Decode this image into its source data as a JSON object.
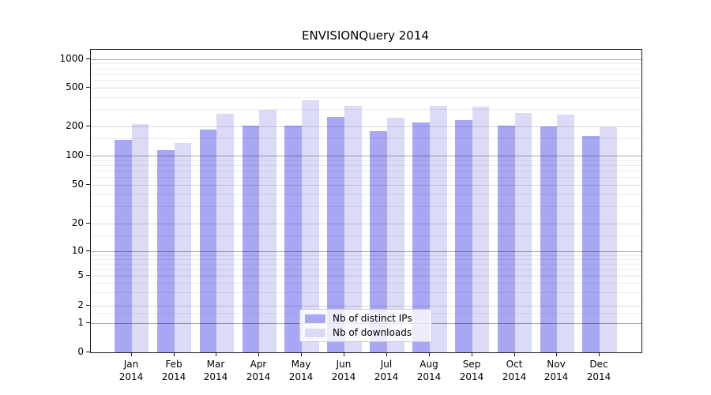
{
  "chart_data": {
    "type": "bar",
    "title": "ENVISIONQuery 2014",
    "categories": [
      "Jan 2014",
      "Feb 2014",
      "Mar 2014",
      "Apr 2014",
      "May 2014",
      "Jun 2014",
      "Jul 2014",
      "Aug 2014",
      "Sep 2014",
      "Oct 2014",
      "Nov 2014",
      "Dec 2014"
    ],
    "series": [
      {
        "name": "Nb of distinct IPs",
        "color": "#a7a7f4",
        "values": [
          146,
          114,
          185,
          202,
          205,
          252,
          180,
          218,
          231,
          204,
          201,
          160
        ]
      },
      {
        "name": "Nb of downloads",
        "color": "#dbdbf8",
        "values": [
          210,
          136,
          270,
          296,
          372,
          327,
          244,
          323,
          320,
          275,
          266,
          198
        ]
      }
    ],
    "xlabel": "",
    "ylabel": "",
    "yscale": "symlog",
    "yticks": [
      0,
      1,
      2,
      5,
      10,
      20,
      50,
      100,
      200,
      500,
      1000
    ],
    "ylim": [
      0,
      1250
    ],
    "grid": true,
    "legend_position": "lower center",
    "frame_color": "#1a1a1a"
  }
}
